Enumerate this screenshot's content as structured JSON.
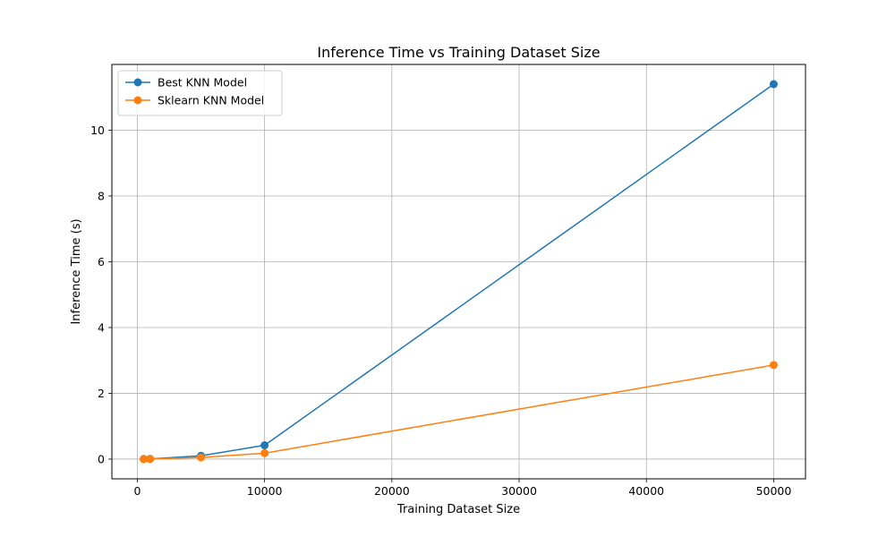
{
  "chart_data": {
    "type": "line",
    "title": "Inference Time vs Training Dataset Size",
    "xlabel": "Training Dataset Size",
    "ylabel": "Inference Time (s)",
    "xlim": [
      -2000,
      52500
    ],
    "ylim": [
      -0.6,
      12.0
    ],
    "xticks": [
      0,
      10000,
      20000,
      30000,
      40000,
      50000
    ],
    "yticks": [
      0,
      2,
      4,
      6,
      8,
      10
    ],
    "grid": true,
    "legend_position": "top-left",
    "series": [
      {
        "name": "Best KNN Model",
        "color": "#1f77b4",
        "x": [
          500,
          1000,
          5000,
          10000,
          50000
        ],
        "y": [
          0.002,
          0.005,
          0.1,
          0.42,
          11.4
        ]
      },
      {
        "name": "Sklearn KNN Model",
        "color": "#ff7f0e",
        "x": [
          500,
          1000,
          5000,
          10000,
          50000
        ],
        "y": [
          0.001,
          0.003,
          0.05,
          0.18,
          2.86
        ]
      }
    ]
  }
}
